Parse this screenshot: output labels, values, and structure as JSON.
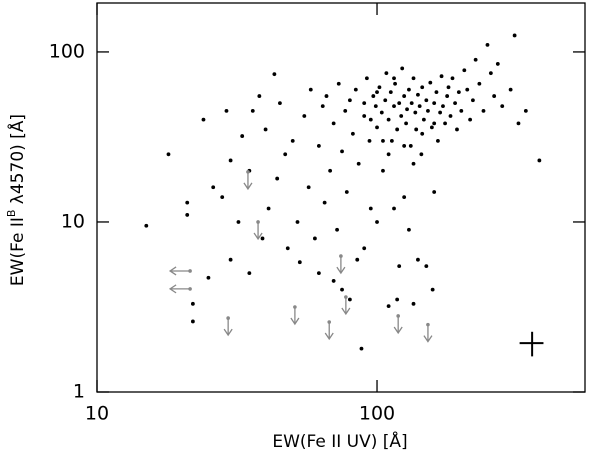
{
  "chart_data": {
    "type": "scatter",
    "x_label": "EW(Fe II UV)   [Å]",
    "y_label": "EW(Fe II",
    "y_label_sup": "B",
    "y_label_rest": " λ4570)   [Å]",
    "xscale": "log",
    "yscale": "log",
    "xlim": [
      10,
      553
    ],
    "ylim": [
      1,
      194
    ],
    "xticks": [
      10,
      100
    ],
    "yticks": [
      1,
      10,
      100
    ],
    "series": [
      {
        "type": "points",
        "color": "#000000",
        "x": [
          15,
          18,
          21,
          21,
          22,
          22,
          25,
          24,
          26,
          28,
          29,
          30,
          30,
          32,
          33,
          35,
          35,
          36,
          38,
          39,
          40,
          41,
          43,
          44,
          45,
          47,
          48,
          50,
          52,
          53,
          55,
          57,
          58,
          60,
          62,
          64,
          65,
          66,
          68,
          70,
          72,
          73,
          75,
          77,
          78,
          80,
          82,
          84,
          85,
          86,
          88,
          90,
          92,
          94,
          95,
          97,
          99,
          100,
          102,
          104,
          105,
          107,
          108,
          110,
          112,
          113,
          115,
          116,
          118,
          120,
          122,
          123,
          125,
          127,
          128,
          130,
          132,
          133,
          135,
          137,
          138,
          140,
          142,
          144,
          145,
          147,
          150,
          152,
          155,
          157,
          158,
          160,
          163,
          165,
          168,
          170,
          172,
          175,
          178,
          180,
          183,
          186,
          190,
          193,
          196,
          200,
          205,
          210,
          215,
          220,
          225,
          232,
          240,
          248,
          255,
          262,
          270,
          280,
          300,
          310,
          320,
          340,
          380,
          120,
          140,
          110,
          118,
          150,
          90,
          100,
          130,
          160,
          115,
          125,
          70,
          62,
          80,
          75,
          135,
          105,
          110,
          95,
          125,
          135,
          145,
          160,
          90,
          100,
          115
        ],
        "y": [
          9.5,
          25,
          11,
          13,
          3.3,
          2.6,
          4.7,
          40,
          16,
          14,
          45,
          23,
          6,
          10,
          32,
          20,
          5,
          45,
          55,
          8,
          35,
          12,
          74,
          18,
          50,
          25,
          7,
          30,
          10,
          5.8,
          42,
          16,
          60,
          8,
          28,
          48,
          13,
          55,
          20,
          38,
          9,
          65,
          26,
          45,
          15,
          52,
          33,
          60,
          6,
          22,
          1.8,
          42,
          70,
          30,
          12,
          55,
          48,
          36,
          62,
          44,
          20,
          52,
          75,
          40,
          58,
          30,
          48,
          65,
          35,
          50,
          42,
          80,
          55,
          38,
          46,
          60,
          28,
          50,
          70,
          44,
          35,
          56,
          48,
          25,
          62,
          40,
          52,
          45,
          66,
          36,
          4,
          50,
          58,
          30,
          44,
          72,
          48,
          38,
          55,
          62,
          42,
          70,
          50,
          35,
          58,
          45,
          78,
          60,
          40,
          52,
          90,
          65,
          45,
          110,
          75,
          55,
          85,
          48,
          60,
          125,
          38,
          45,
          23,
          5.5,
          6,
          3.2,
          3.5,
          5.5,
          7,
          10,
          9,
          15,
          12,
          14,
          4.5,
          5,
          3.5,
          4,
          3.3,
          30,
          25,
          40,
          28,
          22,
          33,
          38,
          50,
          58,
          70
        ]
      },
      {
        "type": "upper_limit",
        "color": "#888888",
        "x": [
          34.6,
          37.6,
          74.3,
          29.4,
          50.9,
          67.5,
          77.4,
          119,
          152
        ],
        "y": [
          19.7,
          10,
          6.3,
          2.72,
          3.16,
          2.58,
          3.62,
          2.8,
          2.49
        ]
      },
      {
        "type": "left_limit",
        "color": "#888888",
        "x": [
          21.5,
          21.5
        ],
        "y": [
          5.15,
          4.04
        ]
      },
      {
        "type": "error_bar",
        "color": "#000000",
        "x": [
          358
        ],
        "y": [
          1.94
        ],
        "xerr": [
          35
        ],
        "yerr": [
          0.32
        ]
      }
    ]
  }
}
